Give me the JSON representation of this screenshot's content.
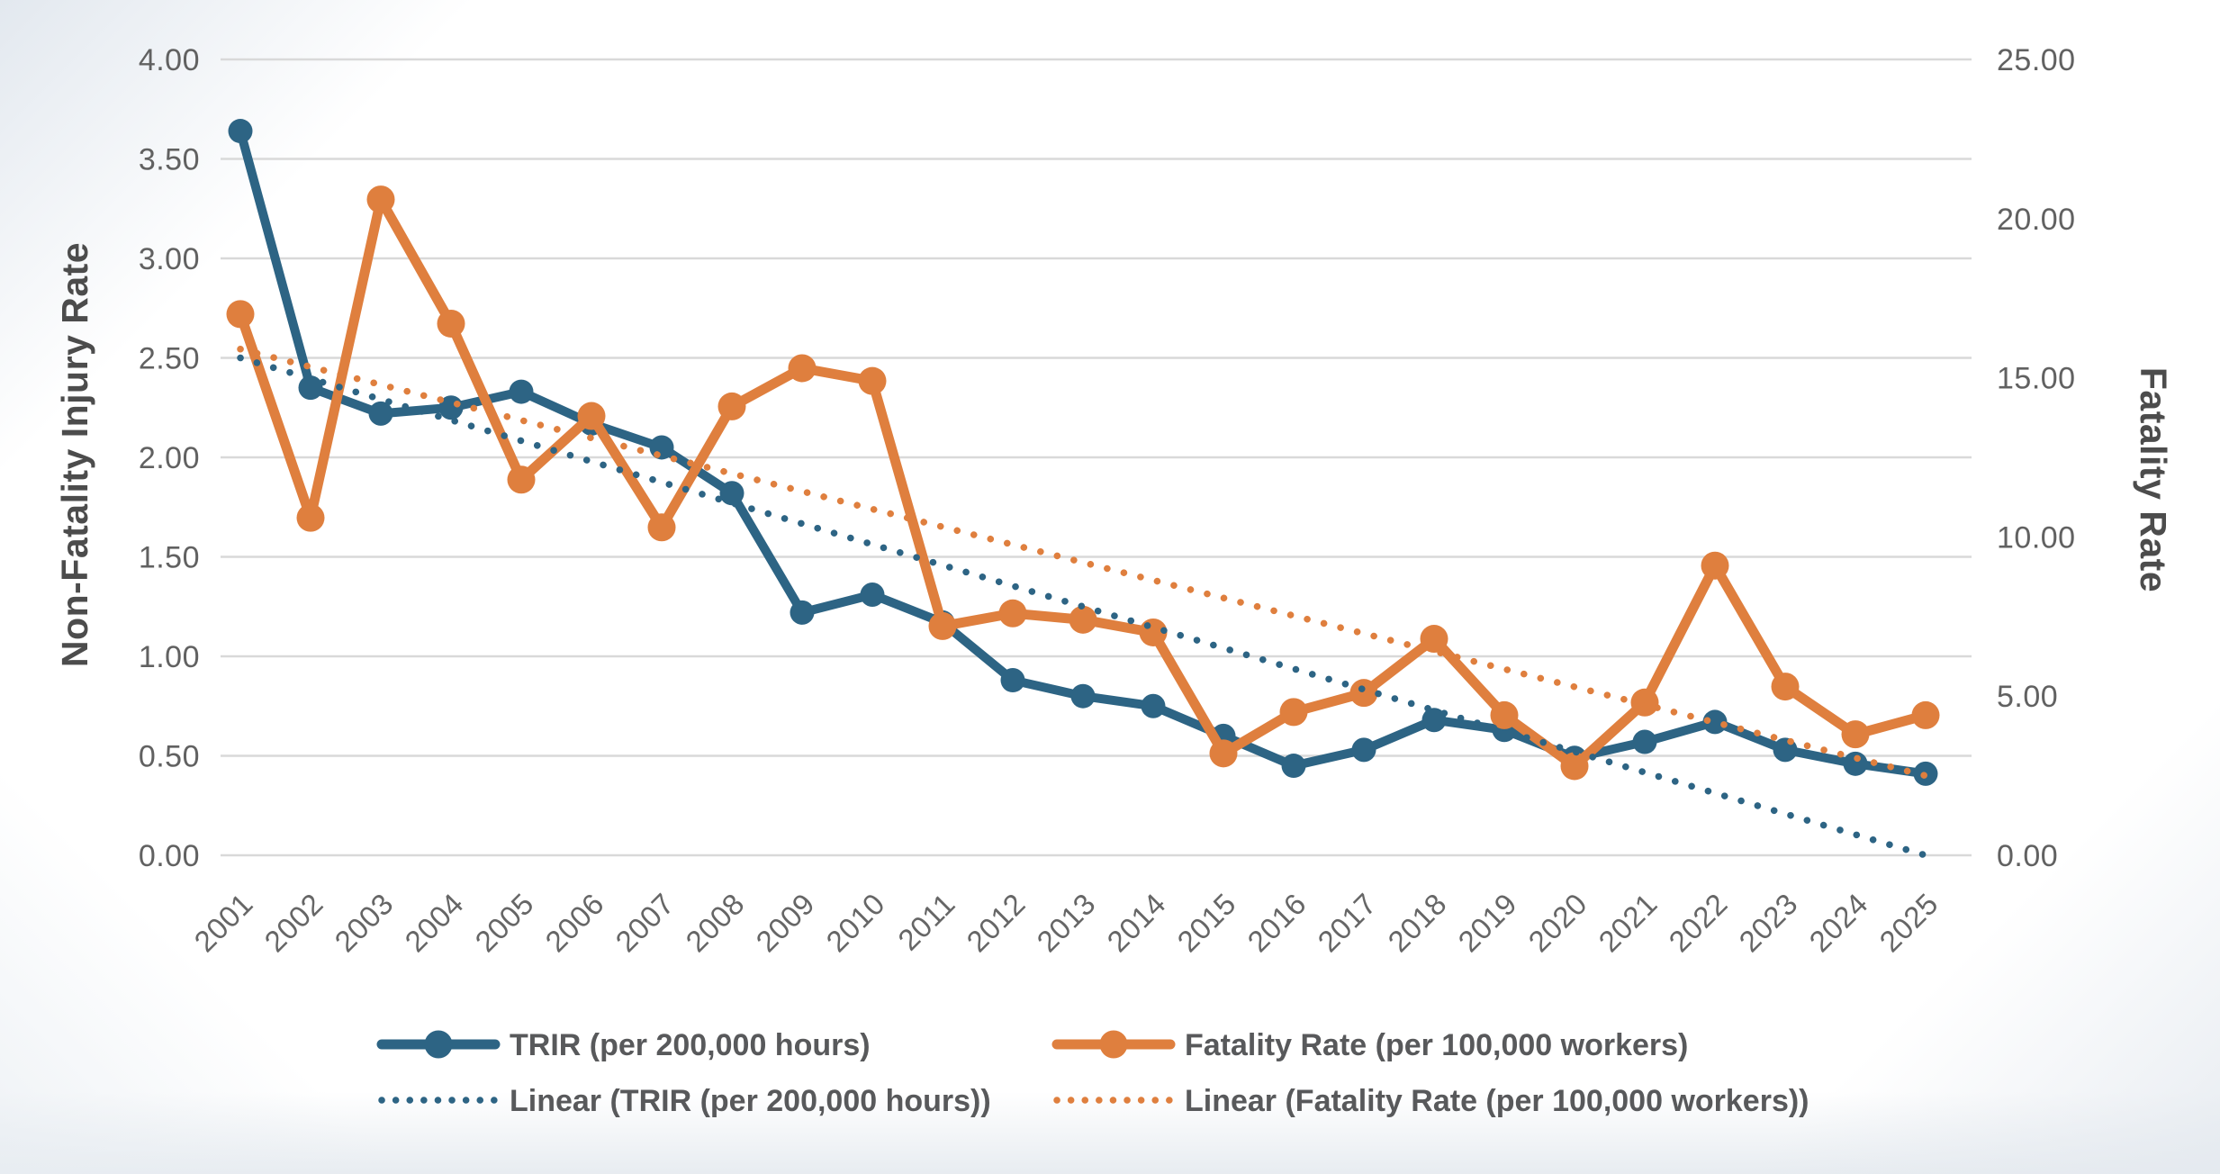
{
  "chart_data": {
    "type": "line",
    "title": "",
    "x_labels": [
      "2001",
      "2002",
      "2003",
      "2004",
      "2005",
      "2006",
      "2007",
      "2008",
      "2009",
      "2010",
      "2011",
      "2012",
      "2013",
      "2014",
      "2015",
      "2016",
      "2017",
      "2018",
      "2019",
      "2020",
      "2021",
      "2022",
      "2023",
      "2024",
      "2025"
    ],
    "left_axis": {
      "title": "Non-Fatality Injury Rate",
      "min": 0,
      "max": 4,
      "step": 0.5,
      "tick_labels": [
        "4.00",
        "3.50",
        "3.00",
        "2.50",
        "2.00",
        "1.50",
        "1.00",
        "0.50",
        "0.00"
      ]
    },
    "right_axis": {
      "title": "Fatality Rate",
      "min": 0,
      "max": 25,
      "step": 5,
      "tick_labels": [
        "25.00",
        "20.00",
        "15.00",
        "10.00",
        "5.00",
        "0.00"
      ]
    },
    "grid": "horizontal-only",
    "legend_position": "bottom-two-columns",
    "series": [
      {
        "name": "TRIR (per 200,000 hours)",
        "axis": "left",
        "color": "#2d6484",
        "style": "solid-with-markers",
        "values": [
          3.64,
          2.35,
          2.22,
          2.25,
          2.33,
          2.17,
          2.05,
          1.82,
          1.22,
          1.31,
          1.17,
          0.88,
          0.8,
          0.75,
          0.6,
          0.45,
          0.53,
          0.68,
          0.63,
          0.49,
          0.57,
          0.67,
          0.53,
          0.46,
          0.41
        ]
      },
      {
        "name": "Fatality Rate (per 100,000 workers)",
        "axis": "right",
        "color": "#df7f3e",
        "style": "solid-with-markers",
        "values": [
          17.0,
          10.6,
          20.6,
          16.7,
          11.8,
          13.8,
          10.3,
          14.1,
          15.3,
          14.9,
          7.2,
          7.6,
          7.4,
          7.0,
          3.2,
          4.5,
          5.1,
          6.8,
          4.4,
          2.8,
          4.8,
          9.1,
          5.3,
          3.8,
          4.4
        ]
      }
    ],
    "trendlines": [
      {
        "name": "Linear (TRIR (per 200,000 hours))",
        "axis": "left",
        "color": "#2d6484",
        "style": "dotted",
        "start_value": 2.5,
        "end_value": 0.0
      },
      {
        "name": "Linear (Fatality Rate (per 100,000 workers))",
        "axis": "right",
        "color": "#df7f3e",
        "style": "dotted",
        "start_value": 15.9,
        "end_value": 2.5
      }
    ],
    "colors": {
      "gridline": "#d9d9d9",
      "tick_text": "#616161",
      "axis_title_text": "#4c4c4c",
      "legend_text": "#58595b",
      "background": "#ffffff"
    }
  }
}
